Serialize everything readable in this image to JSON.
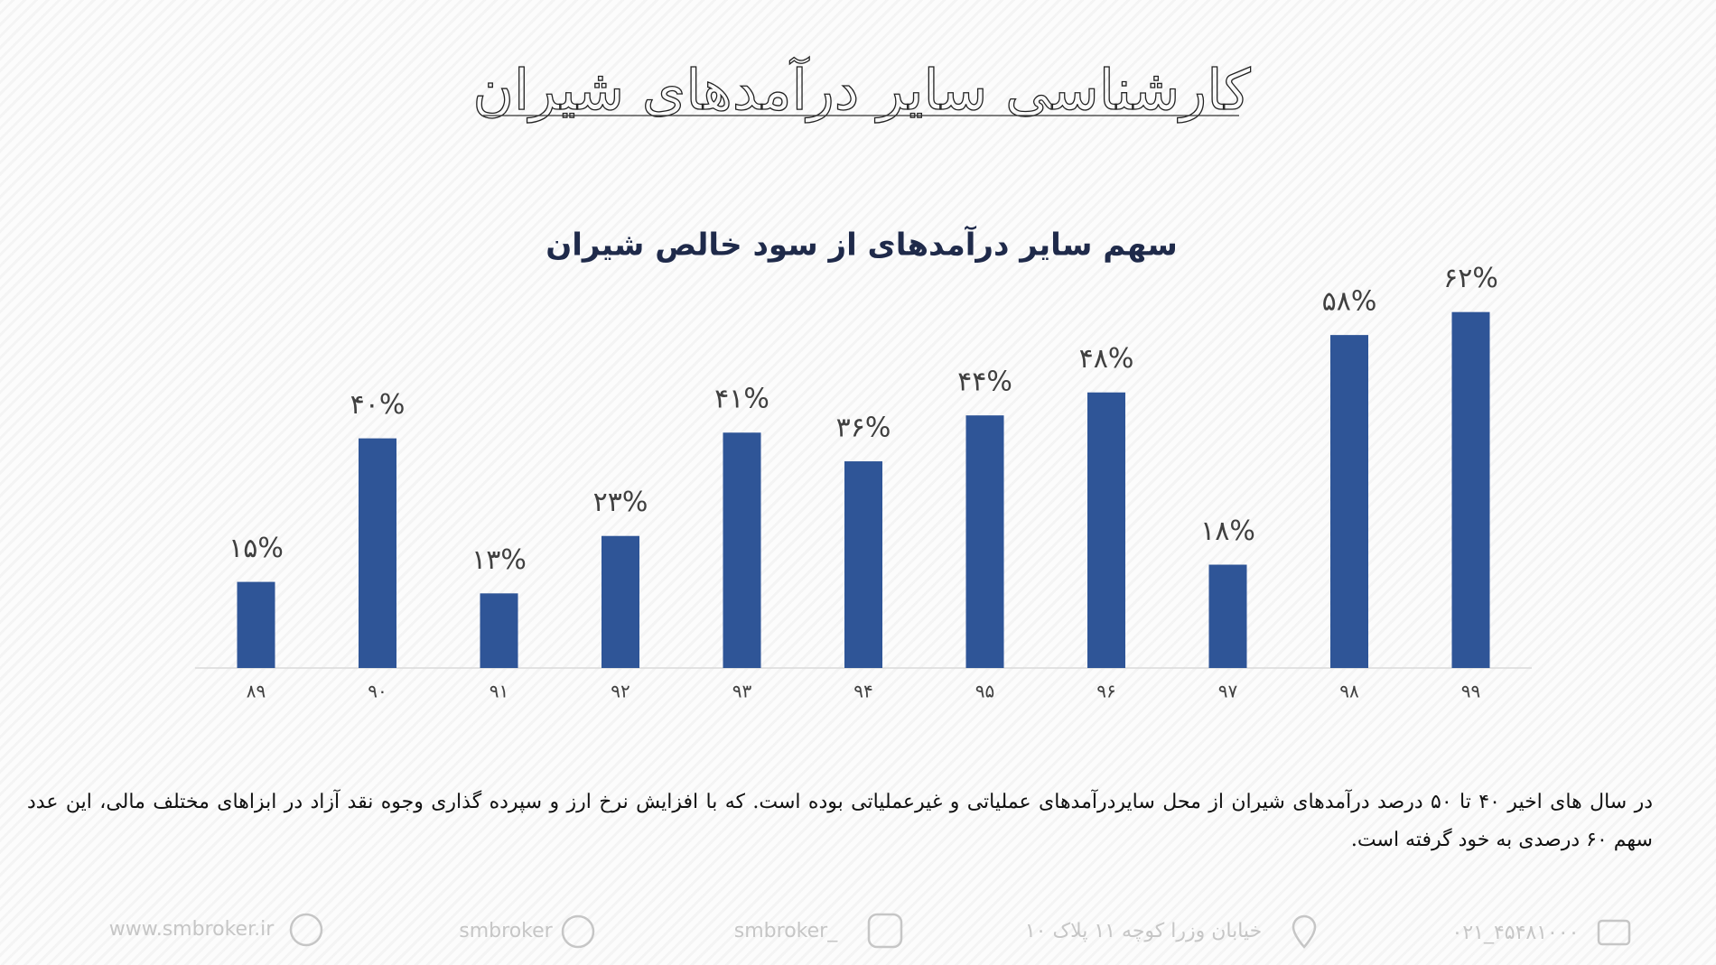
{
  "header": {
    "title": "کارشناسی سایر درآمدهای شیران"
  },
  "chart_data": {
    "type": "bar",
    "title": "سهم سایر درآمدهای از سود خالص شیران",
    "categories": [
      "۸۹",
      "۹۰",
      "۹۱",
      "۹۲",
      "۹۳",
      "۹۴",
      "۹۵",
      "۹۶",
      "۹۷",
      "۹۸",
      "۹۹"
    ],
    "values": [
      15,
      40,
      13,
      23,
      41,
      36,
      44,
      48,
      18,
      58,
      62
    ],
    "value_labels": [
      "۱۵%",
      "۴۰%",
      "۱۳%",
      "۲۳%",
      "۴۱%",
      "۳۶%",
      "۴۴%",
      "۴۸%",
      "۱۸%",
      "۵۸%",
      "۶۲%"
    ],
    "color": "#2f5597"
  },
  "paragraph": "در سال های اخیر ۴۰ تا ۵۰ درصد درآمدهای شیران از محل سایردرآمدهای عملیاتی و غیرعملیاتی بوده است. که با افزایش نرخ ارز و سپرده گذاری وجوه نقد آزاد در ابزاهای مختلف مالی،  این عدد سهم ۶۰ درصدی به خود گرفته است.",
  "footer": {
    "website": "www.smbroker.ir",
    "telegram": "smbroker",
    "instagram": "smbroker_",
    "address": "خیابان وزرا کوچه ۱۱ پلاک ۱۰",
    "phone": "۰۲۱_۴۵۴۸۱۰۰۰"
  }
}
